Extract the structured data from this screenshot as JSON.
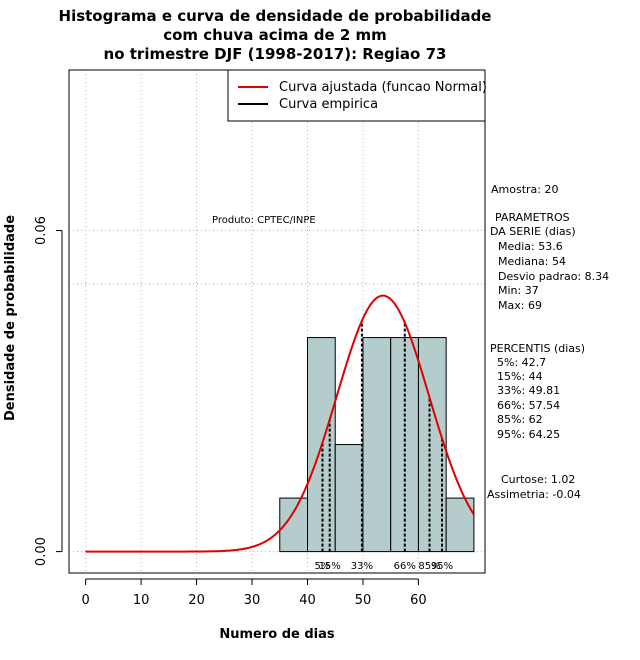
{
  "chart_data": {
    "type": "bar",
    "title_lines": [
      "Histograma e curva de densidade de probabilidade",
      "com chuva acima de 2 mm",
      "no trimestre DJF (1998-2017): Regiao 73"
    ],
    "xlabel": "Numero de dias",
    "ylabel": "Densidade de probabilidade",
    "xlim": [
      -3,
      72
    ],
    "ylim": [
      -0.004,
      0.09
    ],
    "x_ticks": [
      0,
      10,
      20,
      30,
      40,
      50,
      60
    ],
    "y_ticks": [
      0.0,
      0.06
    ],
    "y_tick_labels": [
      "0.00",
      "0.06"
    ],
    "grid": true,
    "bins": [
      {
        "start": 35,
        "end": 40,
        "density": 0.01
      },
      {
        "start": 40,
        "end": 45,
        "density": 0.04
      },
      {
        "start": 45,
        "end": 50,
        "density": 0.02
      },
      {
        "start": 50,
        "end": 55,
        "density": 0.04
      },
      {
        "start": 55,
        "end": 60,
        "density": 0.04
      },
      {
        "start": 60,
        "end": 65,
        "density": 0.04
      },
      {
        "start": 65,
        "end": 70,
        "density": 0.01
      }
    ],
    "bar_color": "#b4cccc",
    "fitted_curve": {
      "mean": 53.6,
      "sd": 8.34,
      "x_range": [
        0,
        70
      ],
      "color": "#e00000"
    },
    "percentile_lines": [
      {
        "label": "5%",
        "value": 42.7
      },
      {
        "label": "15%",
        "value": 44
      },
      {
        "label": "33%",
        "value": 49.81
      },
      {
        "label": "66%",
        "value": 57.54
      },
      {
        "label": "85%",
        "value": 62
      },
      {
        "label": "95%",
        "value": 64.25
      }
    ],
    "legend": {
      "position": "top-right",
      "entries": [
        {
          "label": "Curva ajustada (funcao Normal)",
          "color": "#e00000"
        },
        {
          "label": "Curva empirica",
          "color": "#000000"
        }
      ]
    },
    "annotation": "Produto: CPTEC/INPE",
    "stats": {
      "amostra": "Amostra: 20",
      "params_header1": "PARAMETROS",
      "params_header2": "DA SERIE (dias)",
      "media": "Media: 53.6",
      "mediana": "Mediana: 54",
      "desvio": "Desvio padrao: 8.34",
      "min": "Min: 37",
      "max": "Max: 69",
      "percentis_header": "PERCENTIS (dias)",
      "p5": "5%: 42.7",
      "p15": "15%: 44",
      "p33": "33%: 49.81",
      "p66": "66%: 57.54",
      "p85": "85%: 62",
      "p95": "95%: 64.25",
      "curtose": "Curtose: 1.02",
      "assimetria": "Assimetria: -0.04"
    }
  }
}
